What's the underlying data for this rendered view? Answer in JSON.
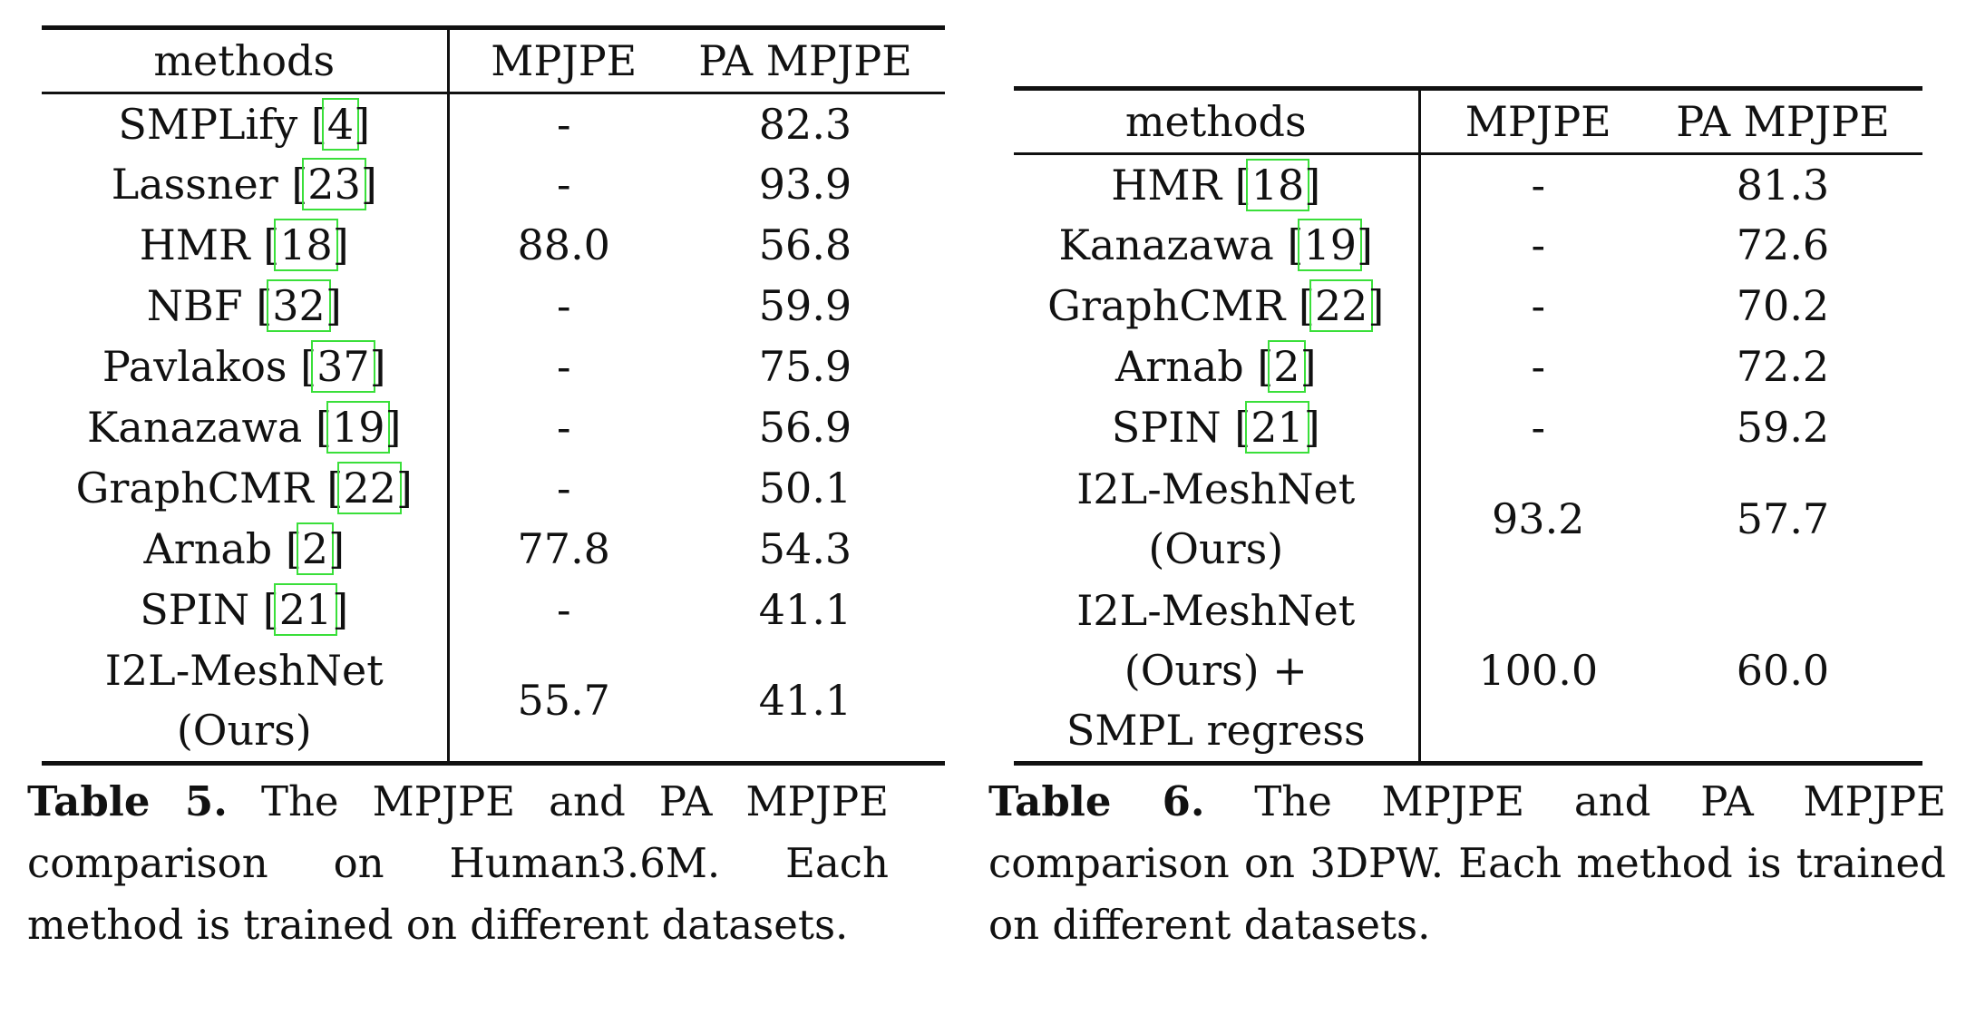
{
  "table5": {
    "headers": [
      "methods",
      "MPJPE",
      "PA MPJPE"
    ],
    "rows": [
      {
        "method": "SMPLify",
        "cite": "4",
        "mpjpe": "-",
        "pa": "82.3"
      },
      {
        "method": "Lassner",
        "cite": "23",
        "mpjpe": "-",
        "pa": "93.9"
      },
      {
        "method": "HMR",
        "cite": "18",
        "mpjpe": "88.0",
        "pa": "56.8"
      },
      {
        "method": "NBF",
        "cite": "32",
        "mpjpe": "-",
        "pa": "59.9"
      },
      {
        "method": "Pavlakos",
        "cite": "37",
        "mpjpe": "-",
        "pa": "75.9"
      },
      {
        "method": "Kanazawa",
        "cite": "19",
        "mpjpe": "-",
        "pa": "56.9"
      },
      {
        "method": "GraphCMR",
        "cite": "22",
        "mpjpe": "-",
        "pa": "50.1"
      },
      {
        "method": "Arnab",
        "cite": "2",
        "mpjpe": "77.8",
        "pa": "54.3"
      },
      {
        "method": "SPIN",
        "cite": "21",
        "mpjpe": "-",
        "pa": "41.1"
      },
      {
        "method_line1": "I2L-MeshNet",
        "method_line2": "(Ours)",
        "mpjpe": "55.7",
        "pa": "41.1"
      }
    ],
    "caption_label": "Table 5.",
    "caption_text": "The MPJPE and PA MPJPE comparison on Human3.6M. Each method is trained on different datasets."
  },
  "table6": {
    "headers": [
      "methods",
      "MPJPE",
      "PA MPJPE"
    ],
    "rows": [
      {
        "method": "HMR",
        "cite": "18",
        "mpjpe": "-",
        "pa": "81.3"
      },
      {
        "method": "Kanazawa",
        "cite": "19",
        "mpjpe": "-",
        "pa": "72.6"
      },
      {
        "method": "GraphCMR",
        "cite": "22",
        "mpjpe": "-",
        "pa": "70.2"
      },
      {
        "method": "Arnab",
        "cite": "2",
        "mpjpe": "-",
        "pa": "72.2"
      },
      {
        "method": "SPIN",
        "cite": "21",
        "mpjpe": "-",
        "pa": "59.2"
      },
      {
        "method_line1": "I2L-MeshNet",
        "method_line2": "(Ours)",
        "mpjpe": "93.2",
        "pa": "57.7"
      },
      {
        "method_line1": "I2L-MeshNet",
        "method_line2": "(Ours) +",
        "method_line3": "SMPL regress",
        "mpjpe": "100.0",
        "pa": "60.0"
      }
    ],
    "caption_label": "Table 6.",
    "caption_text": "The MPJPE and PA MPJPE comparison on 3DPW. Each method is trained on different datasets."
  }
}
